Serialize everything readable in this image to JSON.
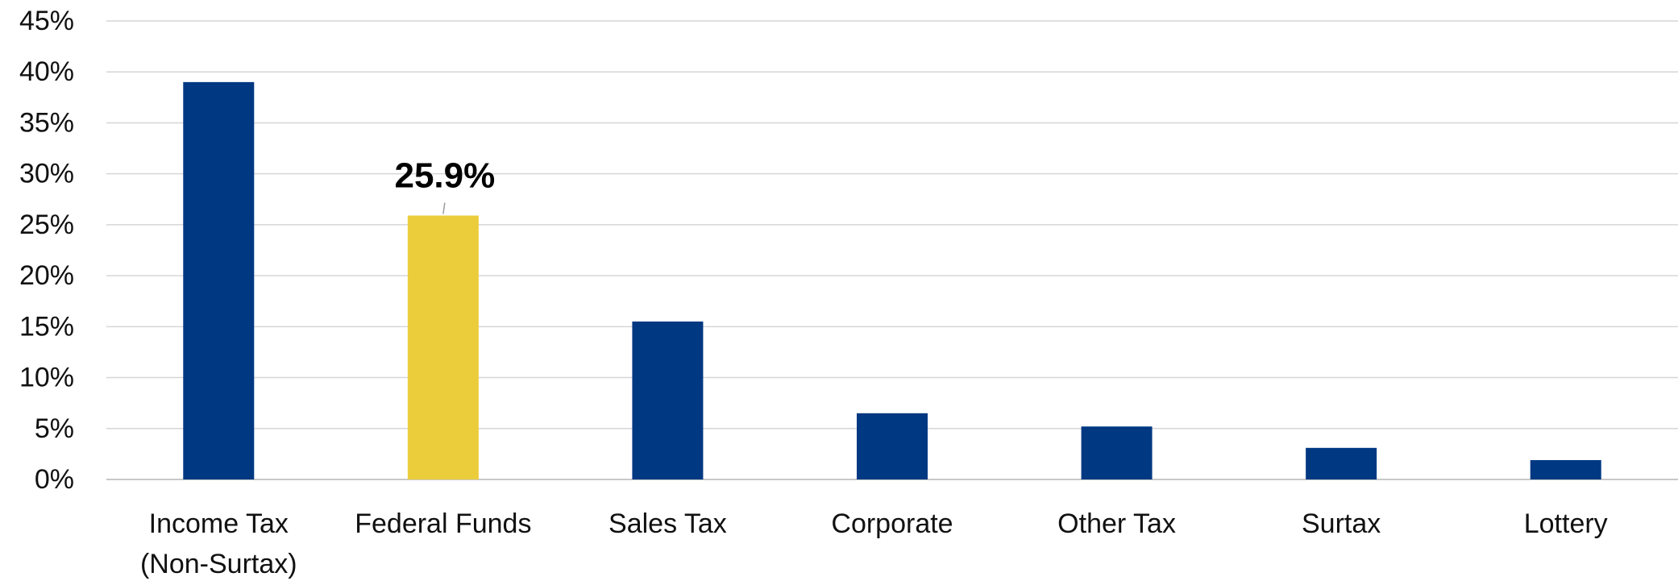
{
  "chart_data": {
    "type": "bar",
    "title": "",
    "xlabel": "",
    "ylabel": "",
    "categories": [
      [
        "Income Tax",
        "(Non-Surtax)"
      ],
      [
        "Federal Funds"
      ],
      [
        "Sales Tax"
      ],
      [
        "Corporate"
      ],
      [
        "Other Tax"
      ],
      [
        "Surtax"
      ],
      [
        "Lottery"
      ]
    ],
    "values": [
      39.0,
      25.9,
      15.5,
      6.5,
      5.2,
      3.1,
      1.9
    ],
    "highlight_index": 1,
    "colors": {
      "bar": "#003882",
      "highlight": "#ebcd3c",
      "grid": "#d6d6d6"
    },
    "data_labels": [
      {
        "index": 1,
        "text": "25.9%"
      }
    ],
    "ylim": [
      0,
      45
    ],
    "yticks": [
      0,
      5,
      10,
      15,
      20,
      25,
      30,
      35,
      40,
      45
    ],
    "ytick_labels": [
      "0%",
      "5%",
      "10%",
      "15%",
      "20%",
      "25%",
      "30%",
      "35%",
      "40%",
      "45%"
    ],
    "grid": true,
    "legend": "none"
  }
}
